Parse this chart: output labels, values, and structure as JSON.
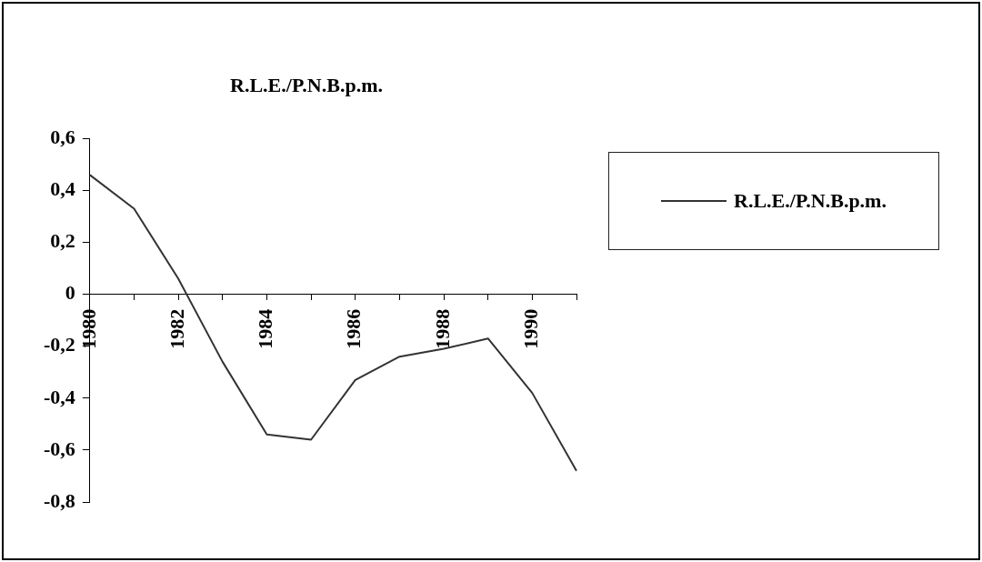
{
  "chart_data": {
    "type": "line",
    "title": "R.L.E./P.N.B.p.m.",
    "categories": [
      "1980",
      null,
      "1982",
      null,
      "1984",
      null,
      "1986",
      null,
      "1988",
      null,
      "1990",
      null
    ],
    "series": [
      {
        "name": "R.L.E./P.N.B.p.m.",
        "color": "#333333",
        "values": [
          0.46,
          0.33,
          0.06,
          -0.26,
          -0.54,
          -0.56,
          -0.33,
          -0.24,
          -0.21,
          -0.17,
          -0.38,
          -0.68
        ]
      }
    ],
    "ylim": [
      -0.8,
      0.6
    ],
    "yticks": [
      {
        "value": 0.6,
        "label": "0,6"
      },
      {
        "value": 0.4,
        "label": "0,4"
      },
      {
        "value": 0.2,
        "label": "0,2"
      },
      0,
      {
        "value": -0.2,
        "label": "-0,2"
      },
      {
        "value": -0.4,
        "label": "-0,4"
      },
      {
        "value": -0.6,
        "label": "-0,6"
      },
      {
        "value": -0.8,
        "label": "-0,8"
      }
    ],
    "grid": false,
    "legend": "right",
    "marker": "none",
    "line_style": "solid"
  }
}
